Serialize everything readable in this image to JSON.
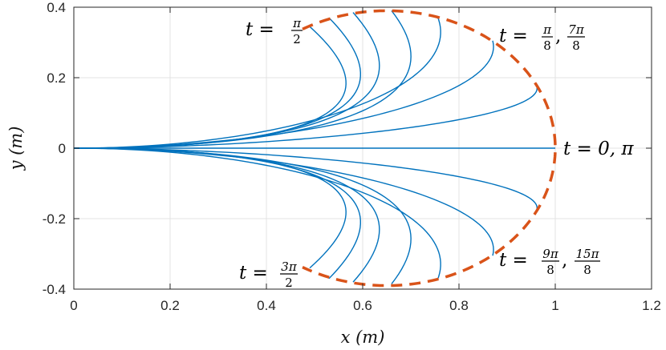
{
  "chart_data": {
    "type": "line",
    "xlabel": "x (m)",
    "ylabel": "y (m)",
    "xlim": [
      0,
      1.2
    ],
    "ylim": [
      -0.4,
      0.4
    ],
    "x_ticks": [
      "0",
      "0.2",
      "0.4",
      "0.6",
      "0.8",
      "1",
      "1.2"
    ],
    "y_ticks": [
      "-0.4",
      "-0.2",
      "0",
      "0.2",
      "0.4"
    ],
    "grid": true,
    "colors": {
      "series": "#0072BD",
      "envelope": "#D95319"
    },
    "series": [
      {
        "tip": [
          1.0,
          0.0
        ]
      },
      {
        "tip": [
          0.962,
          0.172
        ]
      },
      {
        "tip": [
          0.962,
          -0.172
        ]
      },
      {
        "tip": [
          0.87,
          0.305
        ]
      },
      {
        "tip": [
          0.87,
          -0.305
        ]
      },
      {
        "tip": [
          0.755,
          0.375
        ]
      },
      {
        "tip": [
          0.755,
          -0.375
        ]
      },
      {
        "tip": [
          0.66,
          0.39
        ]
      },
      {
        "tip": [
          0.66,
          -0.385
        ]
      },
      {
        "tip": [
          0.58,
          0.385
        ]
      },
      {
        "tip": [
          0.58,
          -0.38
        ]
      },
      {
        "tip": [
          0.53,
          0.37
        ]
      },
      {
        "tip": [
          0.53,
          -0.37
        ]
      },
      {
        "tip": [
          0.49,
          0.345
        ]
      },
      {
        "tip": [
          0.49,
          -0.34
        ]
      }
    ],
    "envelope": {
      "center": [
        0.65,
        0.0
      ],
      "radius_x": 0.35,
      "radius_y": 0.39,
      "style": "dashed",
      "theta_start_deg": 120,
      "theta_end_deg": 240
    },
    "annotations": [
      {
        "prefix": "t = ",
        "fracs": [
          {
            "num": "π",
            "den": "2"
          }
        ],
        "suffix": ""
      },
      {
        "prefix": "t = ",
        "fracs": [
          {
            "num": "π",
            "den": "8"
          },
          {
            "num": "7π",
            "den": "8"
          }
        ],
        "suffix": ""
      },
      {
        "prefix": "t = 0, π",
        "fracs": [],
        "suffix": ""
      },
      {
        "prefix": "t = ",
        "fracs": [
          {
            "num": "9π",
            "den": "8"
          },
          {
            "num": "15π",
            "den": "8"
          }
        ],
        "suffix": ""
      },
      {
        "prefix": "t = ",
        "fracs": [
          {
            "num": "3π",
            "den": "2"
          }
        ],
        "suffix": ""
      }
    ]
  }
}
